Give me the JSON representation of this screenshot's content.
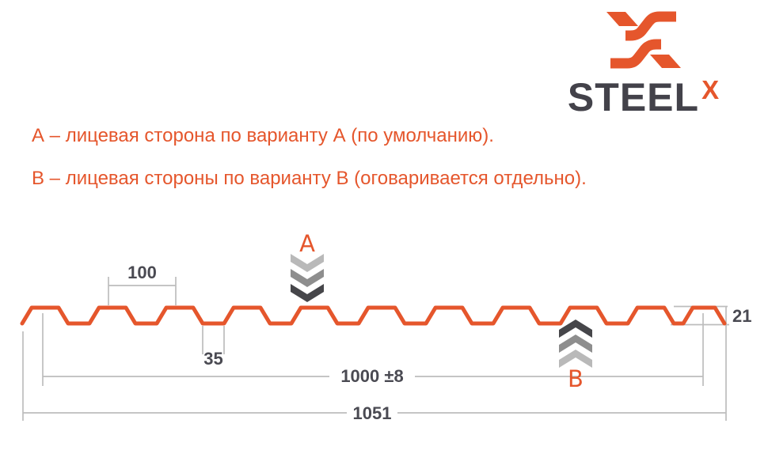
{
  "logo": {
    "brand": "STEEL",
    "sup": "X"
  },
  "notes": {
    "line_a": "А – лицевая сторона по варианту А (по умолчанию).",
    "line_b": "В – лицевая стороны по варианту В (оговаривается отдельно)."
  },
  "diagram": {
    "type": "profile-cross-section",
    "markers": {
      "front_side": "A",
      "back_side": "B"
    },
    "dimensions": {
      "rib_pitch": "100",
      "valley_width": "35",
      "cover_width": "1000 ±8",
      "overall_width": "1051",
      "profile_height": "21"
    },
    "colors": {
      "profile": "#e5562c",
      "dim_line": "#bdbdbd",
      "dim_text": "#4a4a52",
      "marker_letter": "#e5562c",
      "chevrons_a": [
        "#b9b9b9",
        "#8e8e8e",
        "#46464a"
      ],
      "chevrons_b": [
        "#46464a",
        "#8e8e8e",
        "#b9b9b9"
      ]
    }
  },
  "colors": {
    "accent": "#e5562c",
    "brand_dark": "#43424a",
    "background": "#ffffff"
  }
}
